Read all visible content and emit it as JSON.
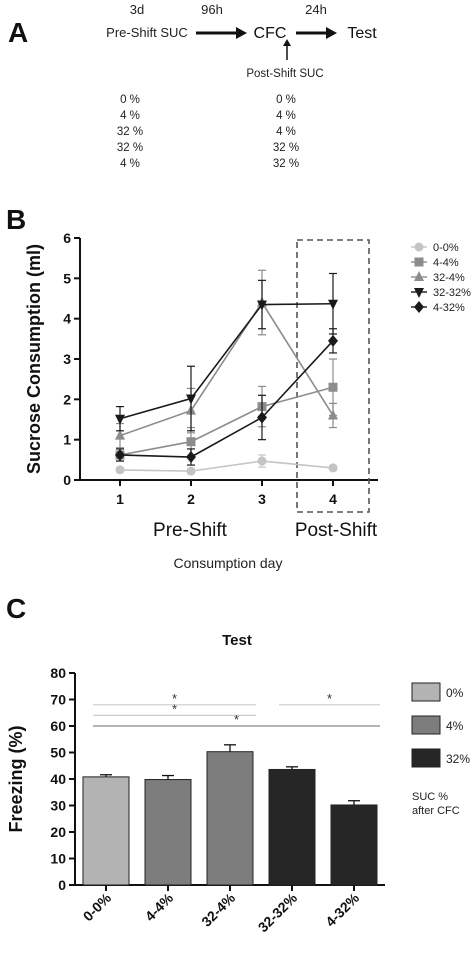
{
  "panel_a": {
    "letter": "A",
    "pre_days": "3d",
    "pre_label": "Pre-Shift SUC",
    "gap1": "96h",
    "cfc": "CFC",
    "gap2": "24h",
    "test": "Test",
    "post_label": "Post-Shift SUC",
    "pre_values": [
      "0 %",
      "4 %",
      "32 %",
      "32 %",
      "4 %"
    ],
    "post_values": [
      "0 %",
      "4 %",
      "4 %",
      "32 %",
      "32 %"
    ]
  },
  "panel_b": {
    "letter": "B",
    "phase_pre": "Pre-Shift",
    "phase_post": "Post-Shift"
  },
  "panel_c": {
    "letter": "C",
    "legend_note_1": "SUC %",
    "legend_note_2": "after CFC"
  },
  "chart_data": [
    {
      "type": "line",
      "title": "",
      "xlabel": "Consumption day",
      "ylabel": "Sucrose  Consumption (ml)",
      "x": [
        1,
        2,
        3,
        4
      ],
      "ylim": [
        0,
        6
      ],
      "yticks": [
        0,
        1,
        2,
        3,
        4,
        5,
        6
      ],
      "legend_position": "top-right",
      "highlight_x": 4,
      "series": [
        {
          "name": "0-0%",
          "marker": "circle",
          "color": "#c4c4c4",
          "values": [
            0.25,
            0.22,
            0.47,
            0.3
          ],
          "errors": [
            0.05,
            0.05,
            0.15,
            0.05
          ]
        },
        {
          "name": "4-4%",
          "marker": "square",
          "color": "#8c8c8c",
          "values": [
            0.62,
            0.95,
            1.82,
            2.3
          ],
          "errors": [
            0.15,
            0.35,
            0.5,
            0.7
          ]
        },
        {
          "name": "32-4%",
          "marker": "triangle-up",
          "color": "#8c8c8c",
          "values": [
            1.1,
            1.72,
            4.4,
            1.6
          ],
          "errors": [
            0.3,
            0.55,
            0.8,
            0.3
          ]
        },
        {
          "name": "32-32%",
          "marker": "triangle-down",
          "color": "#1a1a1a",
          "values": [
            1.52,
            2.02,
            4.35,
            4.37
          ],
          "errors": [
            0.3,
            0.8,
            0.6,
            0.75
          ]
        },
        {
          "name": "4-32%",
          "marker": "diamond",
          "color": "#1a1a1a",
          "values": [
            0.62,
            0.57,
            1.55,
            3.45
          ],
          "errors": [
            0.15,
            0.2,
            0.55,
            0.3
          ]
        }
      ]
    },
    {
      "type": "bar",
      "title": "Test",
      "xlabel": "",
      "ylabel": "Freezing (%)",
      "categories": [
        "0-0%",
        "4-4%",
        "32-4%",
        "32-32%",
        "4-32%"
      ],
      "values": [
        40.8,
        39.8,
        50.3,
        43.6,
        30.2
      ],
      "errors": [
        0.8,
        1.5,
        2.6,
        1.0,
        1.6
      ],
      "colors": [
        "#b3b3b3",
        "#7d7d7d",
        "#7d7d7d",
        "#262626",
        "#262626"
      ],
      "ylim": [
        0,
        80
      ],
      "yticks": [
        0,
        10,
        20,
        30,
        40,
        50,
        60,
        70,
        80
      ],
      "legend_position": "right",
      "legend": [
        {
          "label": "0%",
          "color": "#b3b3b3"
        },
        {
          "label": "4%",
          "color": "#7d7d7d"
        },
        {
          "label": "32%",
          "color": "#262626"
        }
      ],
      "significance": [
        {
          "from": 0,
          "to": 2,
          "label": "*",
          "level": 68
        },
        {
          "from": 0,
          "to": 2,
          "label": "*",
          "level": 64
        },
        {
          "from": 0,
          "to": 4,
          "label": "*",
          "level": 60
        },
        {
          "from": 3,
          "to": 4,
          "label": "*",
          "level": 68
        }
      ]
    }
  ]
}
